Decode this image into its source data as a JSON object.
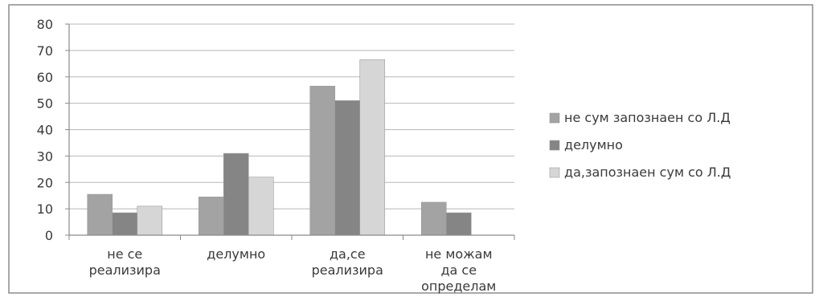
{
  "chart_data": {
    "type": "bar",
    "title": "",
    "xlabel": "",
    "ylabel": "",
    "ylim": [
      0,
      80
    ],
    "yticks": [
      0,
      10,
      20,
      30,
      40,
      50,
      60,
      70,
      80
    ],
    "grid": true,
    "legend_position": "right",
    "categories": [
      [
        "не се",
        "реализира"
      ],
      [
        "делумно"
      ],
      [
        "да,се",
        "реализира"
      ],
      [
        "не можам",
        "да се",
        "определам"
      ]
    ],
    "series": [
      {
        "name": "не сум запознаен со Л.Д",
        "color": "#a3a3a3",
        "values": [
          15.5,
          14.5,
          56.5,
          12.5
        ]
      },
      {
        "name": "делумно",
        "color": "#858585",
        "values": [
          8.5,
          31,
          51,
          8.5
        ]
      },
      {
        "name": "да,запознаен сум со Л.Д",
        "color": "#d6d6d6",
        "values": [
          11,
          22,
          66.5,
          null
        ]
      }
    ]
  }
}
